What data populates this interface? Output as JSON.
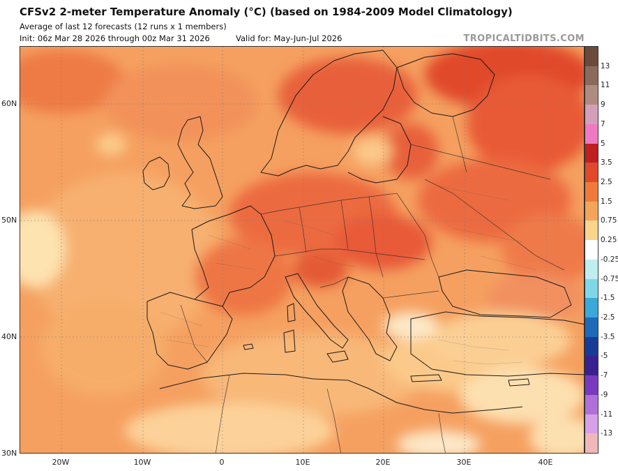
{
  "header": {
    "title": "CFSv2 2-meter Temperature Anomaly (°C) (based on 1984-2009 Model Climatology)",
    "subtitle": "Average of last 12 forecasts (12 runs x 1 members)",
    "init": "Init: 06z Mar 28 2026 through 00z Mar 31 2026",
    "valid": "Valid for: May-Jun-Jul 2026",
    "watermark": "TROPICALTIDBITS.COM"
  },
  "map": {
    "latitude_labels": [
      "60N",
      "50N",
      "40N",
      "30N"
    ],
    "longitude_labels": [
      "20W",
      "10W",
      "0",
      "10E",
      "20E",
      "30E",
      "40E"
    ]
  },
  "colorbar": {
    "labels": [
      "13",
      "11",
      "9",
      "7",
      "5",
      "3.5",
      "2.5",
      "1.5",
      "0.75",
      "0.25",
      "-0.25",
      "-0.75",
      "-1.5",
      "-2.5",
      "-3.5",
      "-5",
      "-7",
      "-9",
      "-11",
      "-13"
    ],
    "colors": [
      "#6b4a3a",
      "#8c6a5a",
      "#b08c80",
      "#d49fb8",
      "#f07ac0",
      "#c02020",
      "#e04a2a",
      "#f07a3a",
      "#f5a55a",
      "#fad48a",
      "#ffffff",
      "#bfeef0",
      "#7fd8e8",
      "#3aa8d8",
      "#1f6ab8",
      "#1a3a98",
      "#3a2090",
      "#7a3ac0",
      "#b070d8",
      "#d8a0e8",
      "#f0b8b8"
    ]
  }
}
